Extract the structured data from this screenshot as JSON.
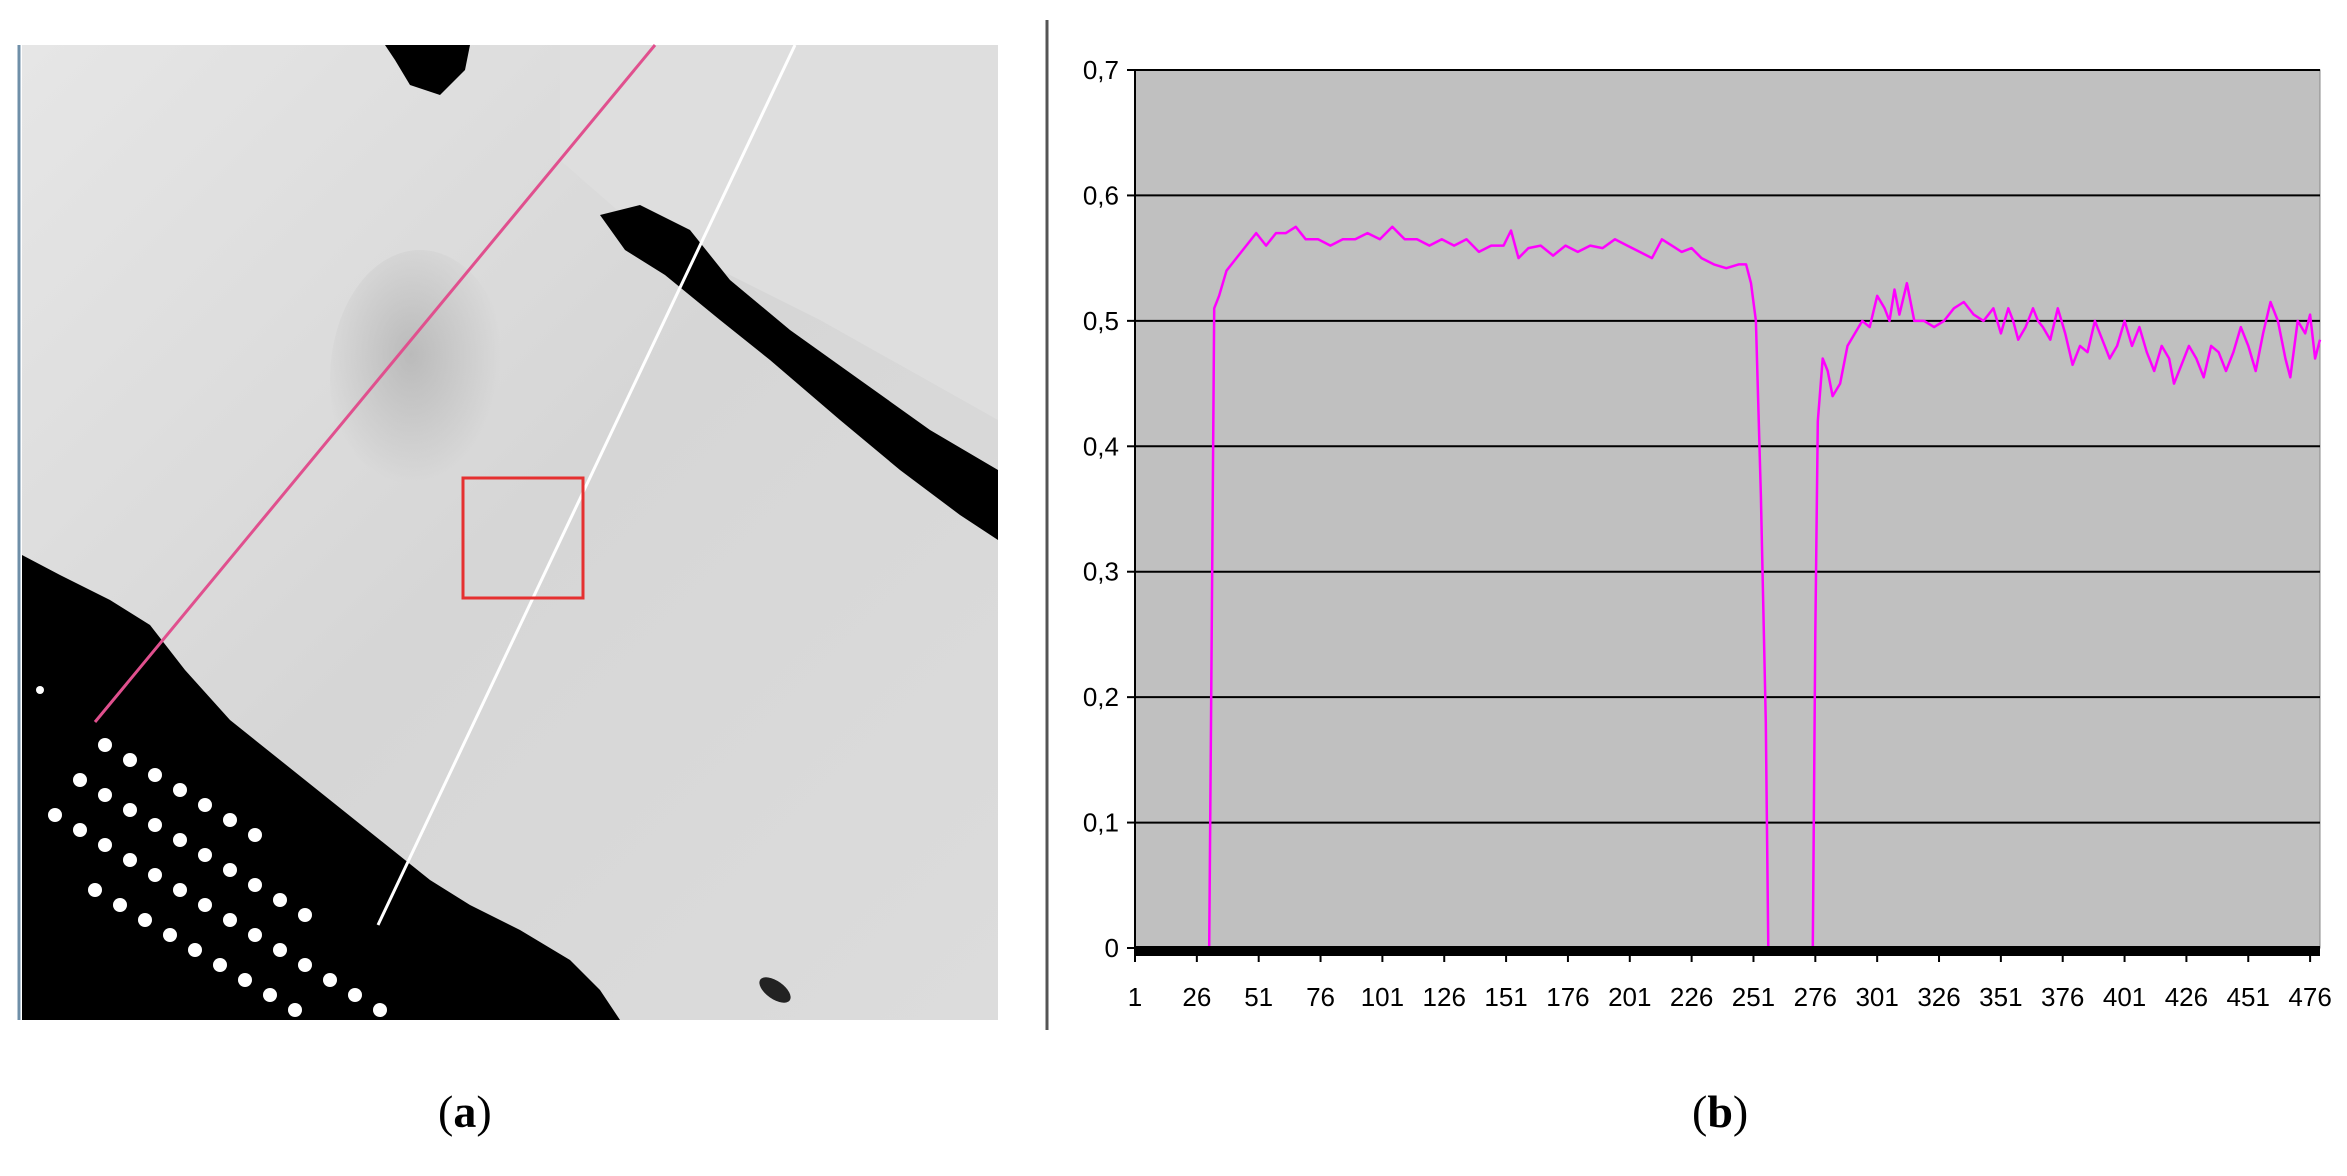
{
  "captions": {
    "a_open": "(",
    "a_letter": "a",
    "a_close": ")",
    "b_open": "(",
    "b_letter": "b",
    "b_close": ")"
  },
  "image_panel": {
    "colors": {
      "profile_line_1": "#e0508e",
      "profile_line_2": "#ffffff",
      "roi_box": "#e53030"
    }
  },
  "chart_data": {
    "type": "line",
    "title": "",
    "xlabel": "",
    "ylabel": "",
    "xlim": [
      1,
      480
    ],
    "ylim": [
      0,
      0.7
    ],
    "x_tick_labels": [
      "1",
      "26",
      "51",
      "76",
      "101",
      "126",
      "151",
      "176",
      "201",
      "226",
      "251",
      "276",
      "301",
      "326",
      "351",
      "376",
      "401",
      "426",
      "451",
      "476"
    ],
    "y_tick_labels": [
      "0",
      "0,1",
      "0,2",
      "0,3",
      "0,4",
      "0,5",
      "0,6",
      "0,7"
    ],
    "grid": true,
    "plot_background": "#c0c0c0",
    "series": [
      {
        "color": "#ff00ff",
        "points": [
          [
            1,
            0
          ],
          [
            31,
            0
          ],
          [
            32,
            0.25
          ],
          [
            33,
            0.51
          ],
          [
            35,
            0.52
          ],
          [
            38,
            0.54
          ],
          [
            42,
            0.55
          ],
          [
            46,
            0.56
          ],
          [
            50,
            0.57
          ],
          [
            54,
            0.56
          ],
          [
            58,
            0.57
          ],
          [
            62,
            0.57
          ],
          [
            66,
            0.575
          ],
          [
            70,
            0.565
          ],
          [
            75,
            0.565
          ],
          [
            80,
            0.56
          ],
          [
            85,
            0.565
          ],
          [
            90,
            0.565
          ],
          [
            95,
            0.57
          ],
          [
            100,
            0.565
          ],
          [
            105,
            0.575
          ],
          [
            110,
            0.565
          ],
          [
            115,
            0.565
          ],
          [
            120,
            0.56
          ],
          [
            125,
            0.565
          ],
          [
            130,
            0.56
          ],
          [
            135,
            0.565
          ],
          [
            140,
            0.555
          ],
          [
            145,
            0.56
          ],
          [
            150,
            0.56
          ],
          [
            153,
            0.572
          ],
          [
            156,
            0.55
          ],
          [
            160,
            0.558
          ],
          [
            165,
            0.56
          ],
          [
            170,
            0.552
          ],
          [
            175,
            0.56
          ],
          [
            180,
            0.555
          ],
          [
            185,
            0.56
          ],
          [
            190,
            0.558
          ],
          [
            195,
            0.565
          ],
          [
            200,
            0.56
          ],
          [
            205,
            0.555
          ],
          [
            210,
            0.55
          ],
          [
            214,
            0.565
          ],
          [
            218,
            0.56
          ],
          [
            222,
            0.555
          ],
          [
            226,
            0.558
          ],
          [
            230,
            0.55
          ],
          [
            235,
            0.545
          ],
          [
            240,
            0.542
          ],
          [
            245,
            0.545
          ],
          [
            248,
            0.545
          ],
          [
            250,
            0.53
          ],
          [
            252,
            0.5
          ],
          [
            254,
            0.36
          ],
          [
            256,
            0.18
          ],
          [
            257,
            0
          ],
          [
            275,
            0
          ],
          [
            276,
            0.25
          ],
          [
            277,
            0.42
          ],
          [
            279,
            0.47
          ],
          [
            281,
            0.46
          ],
          [
            283,
            0.44
          ],
          [
            286,
            0.45
          ],
          [
            289,
            0.48
          ],
          [
            292,
            0.49
          ],
          [
            295,
            0.5
          ],
          [
            298,
            0.495
          ],
          [
            301,
            0.52
          ],
          [
            304,
            0.51
          ],
          [
            306,
            0.5
          ],
          [
            308,
            0.525
          ],
          [
            310,
            0.505
          ],
          [
            313,
            0.53
          ],
          [
            316,
            0.5
          ],
          [
            320,
            0.5
          ],
          [
            324,
            0.495
          ],
          [
            328,
            0.5
          ],
          [
            332,
            0.51
          ],
          [
            336,
            0.515
          ],
          [
            340,
            0.505
          ],
          [
            344,
            0.5
          ],
          [
            348,
            0.51
          ],
          [
            351,
            0.49
          ],
          [
            354,
            0.51
          ],
          [
            356,
            0.5
          ],
          [
            358,
            0.485
          ],
          [
            361,
            0.495
          ],
          [
            364,
            0.51
          ],
          [
            366,
            0.5
          ],
          [
            368,
            0.495
          ],
          [
            371,
            0.485
          ],
          [
            374,
            0.51
          ],
          [
            377,
            0.49
          ],
          [
            380,
            0.465
          ],
          [
            383,
            0.48
          ],
          [
            386,
            0.475
          ],
          [
            389,
            0.5
          ],
          [
            392,
            0.485
          ],
          [
            395,
            0.47
          ],
          [
            398,
            0.48
          ],
          [
            401,
            0.5
          ],
          [
            404,
            0.48
          ],
          [
            407,
            0.495
          ],
          [
            410,
            0.475
          ],
          [
            413,
            0.46
          ],
          [
            416,
            0.48
          ],
          [
            419,
            0.47
          ],
          [
            421,
            0.45
          ],
          [
            424,
            0.465
          ],
          [
            427,
            0.48
          ],
          [
            430,
            0.47
          ],
          [
            433,
            0.455
          ],
          [
            436,
            0.48
          ],
          [
            439,
            0.475
          ],
          [
            442,
            0.46
          ],
          [
            445,
            0.475
          ],
          [
            448,
            0.495
          ],
          [
            451,
            0.48
          ],
          [
            454,
            0.46
          ],
          [
            457,
            0.49
          ],
          [
            460,
            0.515
          ],
          [
            463,
            0.5
          ],
          [
            466,
            0.47
          ],
          [
            468,
            0.455
          ],
          [
            471,
            0.5
          ],
          [
            474,
            0.49
          ],
          [
            476,
            0.505
          ],
          [
            478,
            0.47
          ],
          [
            480,
            0.485
          ]
        ]
      }
    ]
  }
}
